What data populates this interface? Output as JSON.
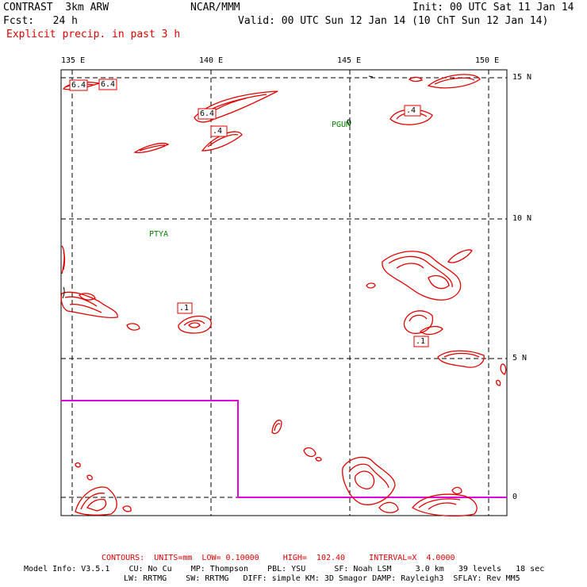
{
  "header": {
    "model_title": "CONTRAST  3km ARW",
    "org": "NCAR/MMM",
    "init": "Init: 00 UTC Sat 11 Jan 14",
    "fcst": "Fcst:   24 h",
    "valid": "Valid: 00 UTC Sun 12 Jan 14 (10 ChT Sun 12 Jan 14)",
    "field": "Explicit precip. in past 3 h"
  },
  "map": {
    "lon_labels": [
      "135 E",
      "140 E",
      "145 E",
      "150 E"
    ],
    "lat_labels": [
      "15 N",
      "10 N",
      "5 N",
      "0"
    ],
    "stations": [
      "PGUM",
      "PTYA"
    ],
    "contour_labels": [
      "6.4",
      "6.4",
      "6.4",
      ".4",
      ".4",
      ".1",
      ".1"
    ],
    "colors": {
      "contour": "#e00000",
      "boundary": "#e000e0",
      "station": "#008000",
      "grid": "#000000"
    }
  },
  "footer": {
    "contours_line": "CONTOURS:  UNITS=mm  LOW= 0.10000     HIGH=  102.40     INTERVAL=X  4.0000",
    "model_info_1": "Model Info: V3.5.1    CU: No Cu    MP: Thompson    PBL: YSU      SF: Noah LSM     3.0 km   39 levels   18 sec",
    "model_info_2": "LW: RRTMG    SW: RRTMG   DIFF: simple KM: 3D Smagor DAMP: Rayleigh3  SFLAY: Rev MM5"
  }
}
